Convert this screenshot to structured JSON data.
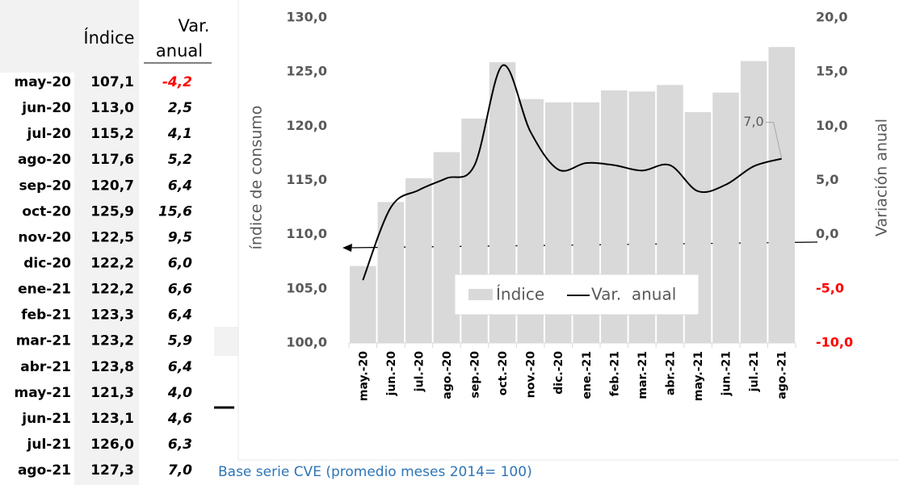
{
  "table": {
    "header": [
      "Índice",
      "Var.",
      "anual"
    ],
    "rows": [
      [
        "may-20",
        "107,1",
        "-4,2"
      ],
      [
        "jun-20",
        "113,0",
        "2,5"
      ],
      [
        "jul-20",
        "115,2",
        "4,1"
      ],
      [
        "ago-20",
        "117,6",
        "5,2"
      ],
      [
        "sep-20",
        "120,7",
        "6,4"
      ],
      [
        "oct-20",
        "125,9",
        "15,6"
      ],
      [
        "nov-20",
        "122,5",
        "9,5"
      ],
      [
        "dic-20",
        "122,2",
        "6,0"
      ],
      [
        "ene-21",
        "122,2",
        "6,6"
      ],
      [
        "feb-21",
        "123,3",
        "6,4"
      ],
      [
        "mar-21",
        "123,2",
        "5,9"
      ],
      [
        "abr-21",
        "123,8",
        "6,4"
      ],
      [
        "may-21",
        "121,3",
        "4,0"
      ],
      [
        "jun-21",
        "123,1",
        "4,6"
      ],
      [
        "jul-21",
        "126,0",
        "6,3"
      ],
      [
        "ago-21",
        "127,3",
        "7,0"
      ]
    ],
    "negative_color": "#ff0000"
  },
  "chart_data": {
    "type": "bar_line",
    "categories": [
      "may.-20",
      "jun.-20",
      "jul.-20",
      "ago.-20",
      "sep.-20",
      "oct.-20",
      "nov.-20",
      "dic.-20",
      "ene.-21",
      "feb.-21",
      "mar.-21",
      "abr.-21",
      "may.-21",
      "jun.-21",
      "jul.-21",
      "ago.-21"
    ],
    "series": [
      {
        "name": "Índice",
        "color": "#d9d9d9",
        "values": [
          107.1,
          113.0,
          115.2,
          117.6,
          120.7,
          125.9,
          122.5,
          122.2,
          122.2,
          123.3,
          123.2,
          123.8,
          121.3,
          123.1,
          126.0,
          127.3
        ]
      },
      {
        "name": "Var.  anual",
        "color": "#000000",
        "axis": "y2",
        "values": [
          -4.2,
          2.5,
          4.1,
          5.2,
          6.4,
          15.6,
          9.5,
          6.0,
          6.6,
          6.4,
          5.9,
          6.4,
          4.0,
          4.6,
          6.3,
          7.0
        ],
        "value_labels": [
          null,
          null,
          null,
          null,
          null,
          null,
          null,
          null,
          null,
          null,
          null,
          null,
          null,
          null,
          null,
          "7,0"
        ]
      }
    ],
    "ylabel": "índice de consumo",
    "y2label": "Variación anual",
    "ylim": [
      100,
      130
    ],
    "yticks": [
      {
        "value": 100,
        "label": "100,0"
      },
      {
        "value": 105,
        "label": "105,0"
      },
      {
        "value": 110,
        "label": "110,0"
      },
      {
        "value": 115,
        "label": "115,0"
      },
      {
        "value": 120,
        "label": "120,0"
      },
      {
        "value": 125,
        "label": "125,0"
      },
      {
        "value": 130,
        "label": "130,0"
      }
    ],
    "y2lim": [
      -10,
      20
    ],
    "y2ticks": [
      {
        "value": -10,
        "label": "-10,0"
      },
      {
        "value": -5,
        "label": "-5,0"
      },
      {
        "value": 0,
        "label": "0,0"
      },
      {
        "value": 5,
        "label": "5,0"
      },
      {
        "value": 10,
        "label": "10,0"
      },
      {
        "value": 15,
        "label": "15,0"
      },
      {
        "value": 20,
        "label": "20,0"
      }
    ],
    "y2tick_colors": [
      "#ff0000",
      "#ff0000",
      "#595959",
      "#595959",
      "#595959",
      "#595959",
      "#595959"
    ],
    "smooth": true,
    "footnote": "Base serie CVE (promedio meses 2014= 100)"
  }
}
